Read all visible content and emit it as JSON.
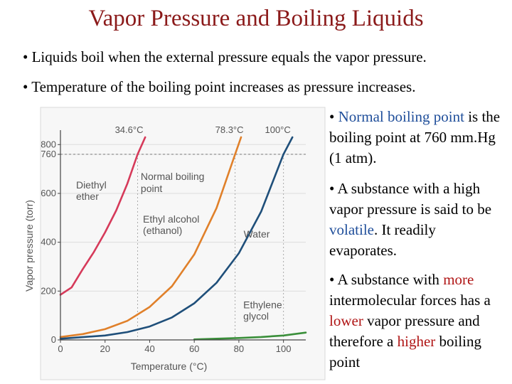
{
  "title": "Vapor Pressure and Boiling Liquids",
  "bullets": [
    "• Liquids boil when the external pressure equals the vapor pressure.",
    "• Temperature of the boiling point increases as pressure increases."
  ],
  "side_notes": {
    "note1": {
      "bullet": "• ",
      "term": "Normal boiling point",
      "rest": "is the boiling point at 760 mm.Hg (1 atm)."
    },
    "note2": {
      "pre": "• A substance with a high vapor pressure is said to be ",
      "term": "volatile",
      "post": ".  It readily evaporates."
    },
    "note3": {
      "pre": "• A substance with ",
      "more": "more",
      "mid1": " intermolecular forces has a ",
      "lower": "lower",
      "mid2": " vapor pressure and therefore a ",
      "higher": "higher",
      "post": " boiling point"
    }
  },
  "colors": {
    "title": "#8b1a1a",
    "accent_blue": "#1f4e9a",
    "accent_red": "#b01616"
  },
  "chart_data": {
    "type": "line",
    "xlabel": "Temperature (°C)",
    "ylabel": "Vapor pressure (torr)",
    "xlim": [
      0,
      110
    ],
    "ylim": [
      0,
      830
    ],
    "x_ticks": [
      "0",
      "20",
      "40",
      "60",
      "80",
      "100"
    ],
    "y_ticks": [
      "0",
      "200",
      "400",
      "600",
      "760",
      "800"
    ],
    "series": [
      {
        "name": "Diethyl ether",
        "label_lines": [
          "Diethyl",
          "ether"
        ],
        "color": "#d63a5a",
        "x": [
          0,
          5,
          10,
          15,
          20,
          25,
          30,
          34.6,
          38
        ],
        "y": [
          185,
          215,
          290,
          360,
          440,
          530,
          640,
          760,
          830
        ]
      },
      {
        "name": "Ethyl alcohol (ethanol)",
        "label_lines": [
          "Ethyl alcohol",
          "(ethanol)"
        ],
        "color": "#e0802a",
        "x": [
          0,
          10,
          20,
          30,
          40,
          50,
          60,
          70,
          78.3,
          81
        ],
        "y": [
          12,
          24,
          44,
          78,
          135,
          220,
          350,
          540,
          760,
          830
        ]
      },
      {
        "name": "Water",
        "label_lines": [
          "Water"
        ],
        "color": "#1f4f7a",
        "x": [
          0,
          20,
          30,
          40,
          50,
          60,
          70,
          80,
          90,
          100,
          104
        ],
        "y": [
          5,
          18,
          32,
          55,
          92,
          150,
          234,
          355,
          526,
          760,
          830
        ]
      },
      {
        "name": "Ethylene glycol",
        "label_lines": [
          "Ethylene",
          "glycol"
        ],
        "color": "#3a8f3a",
        "x": [
          60,
          70,
          80,
          90,
          100,
          110
        ],
        "y": [
          2,
          5,
          8,
          12,
          18,
          30
        ]
      }
    ],
    "annotations": {
      "bp_labels": [
        "34.6°C",
        "78.3°C",
        "100°C"
      ],
      "bp_x": [
        34.6,
        78.3,
        100
      ],
      "normal_bp_label": [
        "Normal boiling",
        "point"
      ]
    }
  }
}
